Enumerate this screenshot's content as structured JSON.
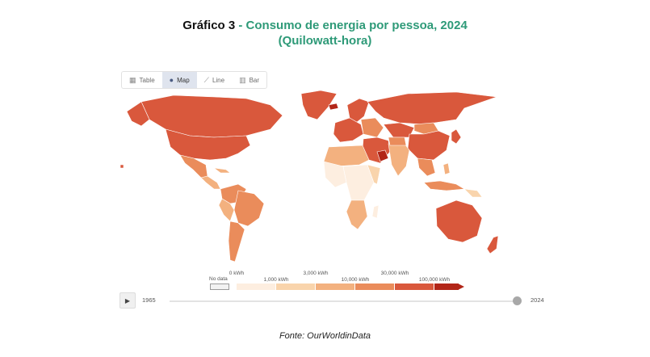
{
  "header": {
    "title_prefix": "Gráfico 3",
    "title_main": " - Consumo de energia por pessoa, 2024",
    "title_unit": "(Quilowatt-hora)"
  },
  "tabs": [
    {
      "label": "Table",
      "icon": "table-icon",
      "active": false
    },
    {
      "label": "Map",
      "icon": "globe-icon",
      "active": true
    },
    {
      "label": "Line",
      "icon": "line-chart-icon",
      "active": false
    },
    {
      "label": "Bar",
      "icon": "bar-chart-icon",
      "active": false
    }
  ],
  "legend": {
    "no_data_label": "No data",
    "tick_labels": [
      "0 kWh",
      "1,000 kWh",
      "3,000 kWh",
      "10,000 kWh",
      "30,000 kWh",
      "100,000 kWh"
    ],
    "bin_colors": [
      "#fdeee0",
      "#f9d4ac",
      "#f3b17f",
      "#ea8c5b",
      "#d9583c",
      "#b22618"
    ],
    "no_data_color": "#f2f2f2"
  },
  "timeline": {
    "start_year": "1965",
    "end_year": "2024",
    "selected_year": "2024",
    "play_icon": "play-icon"
  },
  "source": "Fonte: OurWorldinData"
}
